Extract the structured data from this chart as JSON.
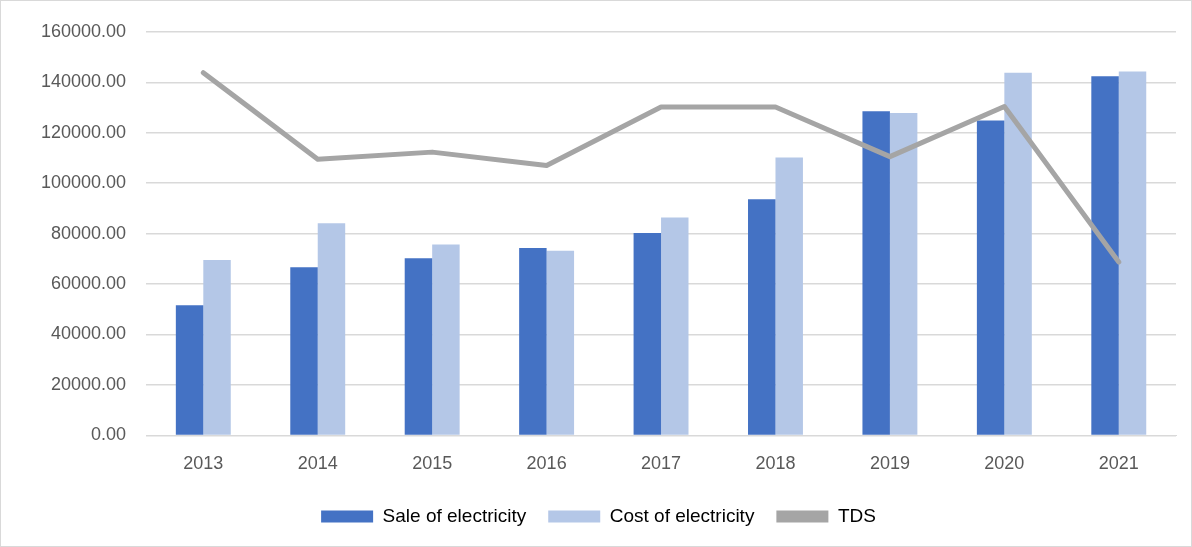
{
  "chart_data": {
    "type": "bar",
    "categories": [
      "2013",
      "2014",
      "2015",
      "2016",
      "2017",
      "2018",
      "2019",
      "2020",
      "2021"
    ],
    "series": [
      {
        "name": "Sale of electricity",
        "color": "#4472c4",
        "values": [
          51600,
          66700,
          70200,
          74300,
          80200,
          93600,
          128500,
          124800,
          142400
        ]
      },
      {
        "name": "Cost of electricity",
        "color": "#b4c7e7",
        "values": [
          69500,
          84100,
          75700,
          73200,
          86400,
          110200,
          127800,
          143800,
          144300
        ]
      },
      {
        "name": "TDS",
        "type": "line",
        "color": "#a5a5a5",
        "values": [
          143800,
          109500,
          112300,
          107000,
          130200,
          130200,
          110500,
          130400,
          68700
        ]
      }
    ],
    "ylim": [
      0,
      160000
    ],
    "yticks": [
      {
        "value": 0,
        "label": "0.00"
      },
      {
        "value": 20000,
        "label": "20000.00"
      },
      {
        "value": 40000,
        "label": "40000.00"
      },
      {
        "value": 60000,
        "label": "60000.00"
      },
      {
        "value": 80000,
        "label": "80000.00"
      },
      {
        "value": 100000,
        "label": "100000.00"
      },
      {
        "value": 120000,
        "label": "120000.00"
      },
      {
        "value": 140000,
        "label": "140000.00"
      },
      {
        "value": 160000,
        "label": "160000.00"
      }
    ],
    "grid": "y",
    "legend": "bottom",
    "marker": "none",
    "line_style": "solid"
  }
}
